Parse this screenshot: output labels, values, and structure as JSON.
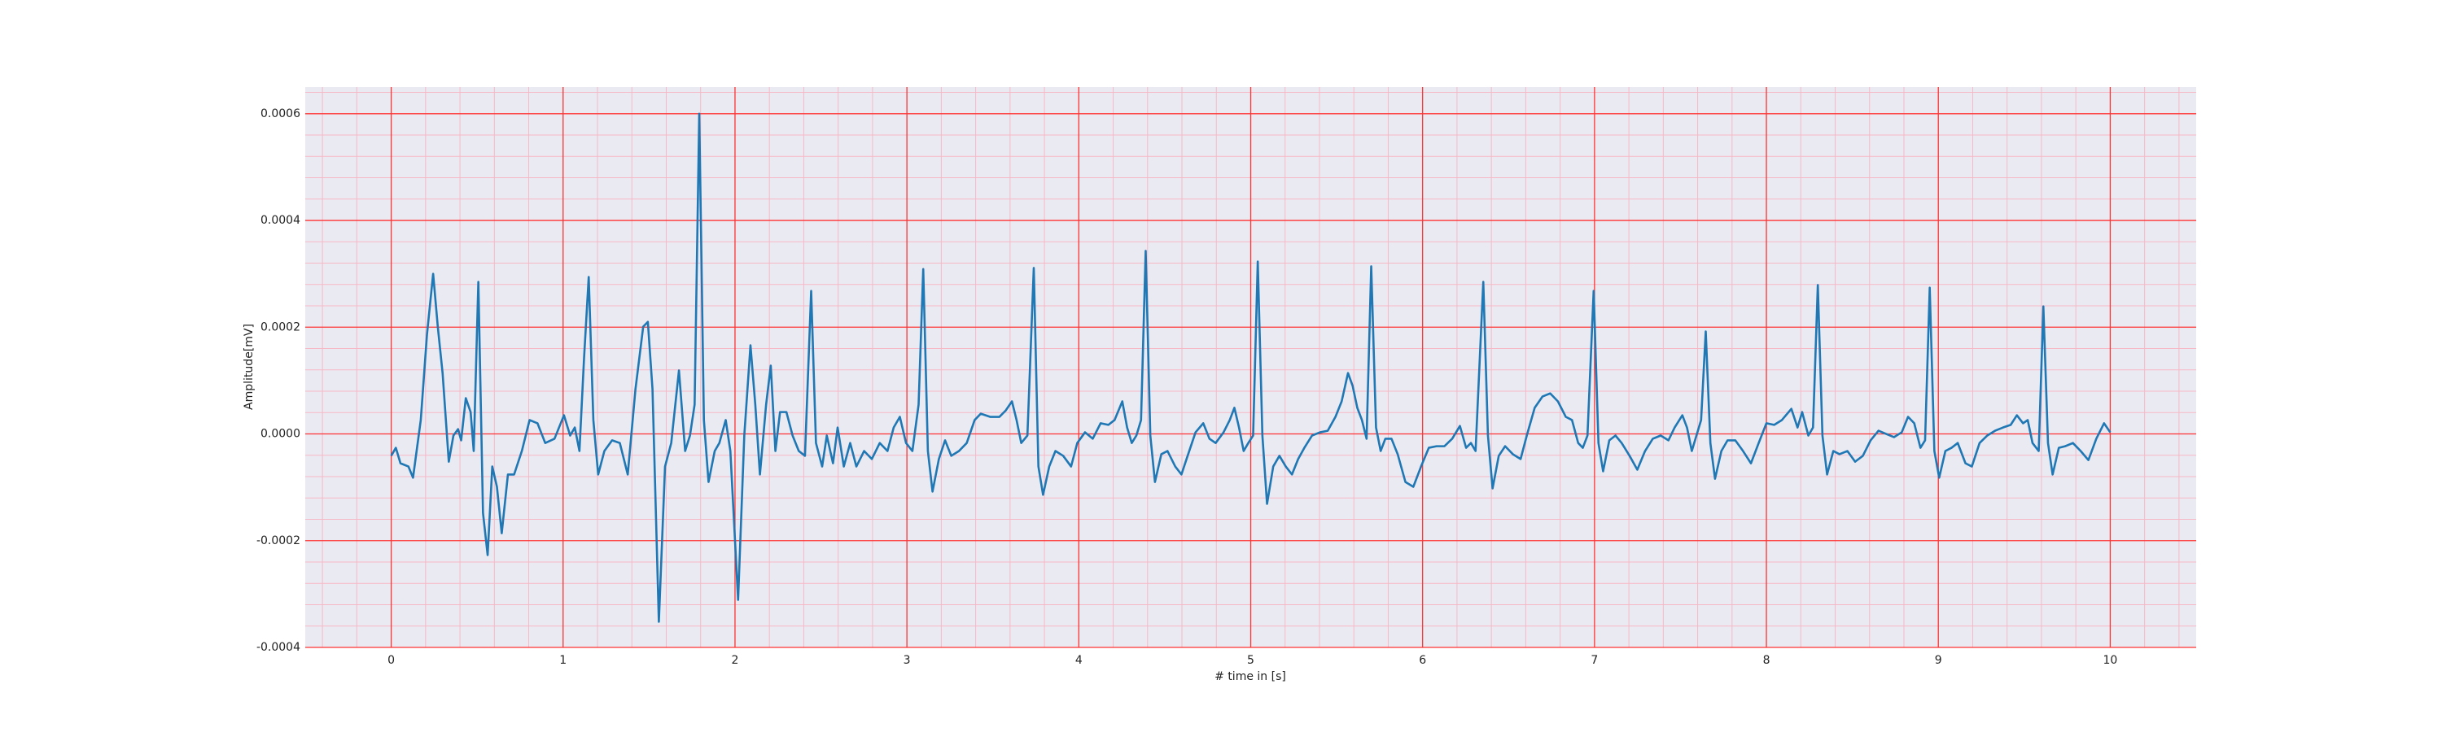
{
  "chart_data": {
    "type": "line",
    "xlabel": "# time in [s]",
    "ylabel": "Amplitude[mV]",
    "xlim": [
      -0.5,
      10.5
    ],
    "ylim": [
      -0.0004,
      0.00065
    ],
    "xticks": [
      0,
      1,
      2,
      3,
      4,
      5,
      6,
      7,
      8,
      9,
      10
    ],
    "yticks": [
      -0.0004,
      -0.0002,
      {
        "value": 0,
        "label": "0.0000"
      },
      0.0002,
      0.0004,
      0.0006
    ],
    "grid": true,
    "grid_color": "#ff3333",
    "minor_grid": true,
    "minor_grid_color": "#f7b8c6",
    "minor_divisions": 5,
    "background": "#eaeaf2",
    "series": [
      {
        "color": "#1f77b4",
        "x": [
          0,
          0.027,
          0.054,
          0.1,
          0.127,
          0.172,
          0.208,
          0.244,
          0.271,
          0.299,
          0.335,
          0.362,
          0.389,
          0.407,
          0.434,
          0.462,
          0.48,
          0.507,
          0.534,
          0.561,
          0.588,
          0.615,
          0.643,
          0.679,
          0.715,
          0.76,
          0.805,
          0.851,
          0.896,
          0.95,
          1.005,
          1.041,
          1.068,
          1.095,
          1.122,
          1.149,
          1.176,
          1.204,
          1.24,
          1.285,
          1.33,
          1.376,
          1.421,
          1.466,
          1.493,
          1.52,
          1.557,
          1.593,
          1.629,
          1.674,
          1.71,
          1.738,
          1.765,
          1.792,
          1.819,
          1.846,
          1.882,
          1.909,
          1.946,
          1.973,
          2.018,
          2.054,
          2.09,
          2.118,
          2.145,
          2.181,
          2.208,
          2.235,
          2.262,
          2.299,
          2.335,
          2.371,
          2.407,
          2.443,
          2.471,
          2.507,
          2.534,
          2.57,
          2.597,
          2.633,
          2.67,
          2.706,
          2.751,
          2.796,
          2.842,
          2.887,
          2.923,
          2.959,
          2.995,
          3.032,
          3.068,
          3.095,
          3.122,
          3.149,
          3.186,
          3.222,
          3.258,
          3.303,
          3.348,
          3.394,
          3.43,
          3.484,
          3.538,
          3.575,
          3.611,
          3.638,
          3.665,
          3.701,
          3.738,
          3.765,
          3.792,
          3.828,
          3.864,
          3.909,
          3.955,
          3.991,
          4.036,
          4.081,
          4.127,
          4.172,
          4.208,
          4.253,
          4.281,
          4.308,
          4.335,
          4.362,
          4.389,
          4.416,
          4.443,
          4.48,
          4.516,
          4.561,
          4.597,
          4.633,
          4.679,
          4.724,
          4.76,
          4.796,
          4.842,
          4.878,
          4.905,
          4.932,
          4.959,
          4.986,
          5.014,
          5.041,
          5.068,
          5.095,
          5.131,
          5.167,
          5.204,
          5.24,
          5.276,
          5.312,
          5.357,
          5.403,
          5.448,
          5.493,
          5.529,
          5.566,
          5.593,
          5.62,
          5.647,
          5.674,
          5.701,
          5.729,
          5.756,
          5.783,
          5.819,
          5.855,
          5.9,
          5.946,
          5.991,
          6.036,
          6.081,
          6.127,
          6.172,
          6.217,
          6.253,
          6.281,
          6.308,
          6.353,
          6.38,
          6.407,
          6.443,
          6.48,
          6.525,
          6.57,
          6.606,
          6.652,
          6.697,
          6.742,
          6.787,
          6.833,
          6.869,
          6.905,
          6.932,
          6.959,
          6.995,
          7.023,
          7.05,
          7.086,
          7.122,
          7.158,
          7.204,
          7.249,
          7.294,
          7.339,
          7.385,
          7.43,
          7.466,
          7.511,
          7.538,
          7.566,
          7.593,
          7.62,
          7.647,
          7.674,
          7.701,
          7.738,
          7.774,
          7.819,
          7.864,
          7.91,
          7.955,
          8.0,
          8.045,
          8.09,
          8.145,
          8.181,
          8.208,
          8.244,
          8.271,
          8.299,
          8.326,
          8.353,
          8.389,
          8.425,
          8.471,
          8.516,
          8.561,
          8.606,
          8.652,
          8.697,
          8.742,
          8.787,
          8.824,
          8.86,
          8.896,
          8.923,
          8.95,
          8.977,
          9.005,
          9.041,
          9.077,
          9.113,
          9.158,
          9.195,
          9.24,
          9.285,
          9.33,
          9.376,
          9.421,
          9.457,
          9.493,
          9.52,
          9.548,
          9.584,
          9.611,
          9.638,
          9.665,
          9.701,
          9.738,
          9.783,
          9.828,
          9.873,
          9.919,
          9.964,
          10.0
        ],
        "values": [
          -4.1e-05,
          -2.6e-05,
          -5.5e-05,
          -6.1e-05,
          -8.2e-05,
          2.6e-05,
          0.000186,
          0.0003,
          0.000201,
          0.000114,
          -5.2e-05,
          -3e-06,
          9e-06,
          -1.2e-05,
          6.7e-05,
          4.1e-05,
          -3.2e-05,
          0.000285,
          -0.000148,
          -0.000227,
          -6.1e-05,
          -9.9e-05,
          -0.000186,
          -7.6e-05,
          -7.6e-05,
          -3.2e-05,
          2.6e-05,
          2e-05,
          -1.7e-05,
          -9e-06,
          3.5e-05,
          -3e-06,
          1.2e-05,
          -3.2e-05,
          0.000143,
          0.000294,
          2.6e-05,
          -7.6e-05,
          -3.2e-05,
          -1.2e-05,
          -1.7e-05,
          -7.6e-05,
          8.4e-05,
          0.000201,
          0.00021,
          8.4e-05,
          -0.000352,
          -6.1e-05,
          -1.7e-05,
          0.000119,
          -3.2e-05,
          -3e-06,
          5.5e-05,
          0.0006,
          2.6e-05,
          -9e-05,
          -3.2e-05,
          -1.7e-05,
          2.6e-05,
          -3.2e-05,
          -0.000311,
          -3e-06,
          0.000166,
          5.5e-05,
          -7.6e-05,
          5.5e-05,
          0.000128,
          -3.2e-05,
          4.1e-05,
          4.1e-05,
          -3e-06,
          -3.2e-05,
          -4.1e-05,
          0.000268,
          -1.7e-05,
          -6.1e-05,
          -3e-06,
          -5.5e-05,
          1.2e-05,
          -6.1e-05,
          -1.7e-05,
          -6.1e-05,
          -3.2e-05,
          -4.7e-05,
          -1.7e-05,
          -3.2e-05,
          1.2e-05,
          3.2e-05,
          -1.7e-05,
          -3.2e-05,
          5.5e-05,
          0.000309,
          -3.2e-05,
          -0.000108,
          -4.7e-05,
          -1.2e-05,
          -4.1e-05,
          -3.2e-05,
          -1.7e-05,
          2.6e-05,
          3.8e-05,
          3.2e-05,
          3.2e-05,
          4.4e-05,
          6.1e-05,
          2.6e-05,
          -1.7e-05,
          -3e-06,
          0.000311,
          -6.1e-05,
          -0.000114,
          -6.1e-05,
          -3.2e-05,
          -4.1e-05,
          -6.1e-05,
          -1.7e-05,
          3e-06,
          -9e-06,
          2e-05,
          1.7e-05,
          2.6e-05,
          6.1e-05,
          1.2e-05,
          -1.7e-05,
          -3e-06,
          2.6e-05,
          0.000343,
          -3e-06,
          -9e-05,
          -3.8e-05,
          -3.2e-05,
          -6.1e-05,
          -7.6e-05,
          -4.1e-05,
          3e-06,
          2e-05,
          -9e-06,
          -1.7e-05,
          3e-06,
          2.6e-05,
          4.9e-05,
          1.2e-05,
          -3.2e-05,
          -1.7e-05,
          -3e-06,
          0.000323,
          -3e-06,
          -0.000131,
          -6.1e-05,
          -4.1e-05,
          -6.1e-05,
          -7.6e-05,
          -4.7e-05,
          -2.6e-05,
          -3e-06,
          3e-06,
          6e-06,
          3.2e-05,
          6.1e-05,
          0.000114,
          9e-05,
          4.9e-05,
          2.6e-05,
          -9e-06,
          0.000314,
          1.2e-05,
          -3.2e-05,
          -9e-06,
          -9e-06,
          -3.8e-05,
          -9e-05,
          -9.9e-05,
          -6.1e-05,
          -2.6e-05,
          -2.3e-05,
          -2.3e-05,
          -9e-06,
          1.5e-05,
          -2.6e-05,
          -1.7e-05,
          -3.2e-05,
          0.000285,
          -3e-06,
          -0.000102,
          -4.1e-05,
          -2.3e-05,
          -3.8e-05,
          -4.7e-05,
          -3e-06,
          4.9e-05,
          7e-05,
          7.6e-05,
          6.1e-05,
          3.2e-05,
          2.6e-05,
          -1.7e-05,
          -2.6e-05,
          -3e-06,
          0.000268,
          -1.7e-05,
          -7e-05,
          -1.2e-05,
          -3e-06,
          -1.7e-05,
          -4.1e-05,
          -6.7e-05,
          -3.2e-05,
          -9e-06,
          -3e-06,
          -1.2e-05,
          1.2e-05,
          3.5e-05,
          1.2e-05,
          -3.2e-05,
          -3e-06,
          2.6e-05,
          0.000192,
          -1.7e-05,
          -8.4e-05,
          -3.2e-05,
          -1.2e-05,
          -1.2e-05,
          -3.2e-05,
          -5.5e-05,
          -1.7e-05,
          2e-05,
          1.7e-05,
          2.6e-05,
          4.7e-05,
          1.2e-05,
          4.1e-05,
          -3e-06,
          1.2e-05,
          0.000279,
          -3e-06,
          -7.6e-05,
          -3.2e-05,
          -3.8e-05,
          -3.2e-05,
          -5.2e-05,
          -4.1e-05,
          -1.2e-05,
          6e-06,
          0,
          -6e-06,
          3e-06,
          3.2e-05,
          2e-05,
          -2.6e-05,
          -1.2e-05,
          0.000274,
          -3.2e-05,
          -8.2e-05,
          -3.2e-05,
          -2.6e-05,
          -1.7e-05,
          -5.5e-05,
          -6.1e-05,
          -1.7e-05,
          -3e-06,
          6e-06,
          1.2e-05,
          1.7e-05,
          3.5e-05,
          2e-05,
          2.6e-05,
          -1.7e-05,
          -3.2e-05,
          0.000239,
          -1.7e-05,
          -7.6e-05,
          -2.6e-05,
          -2.3e-05,
          -1.7e-05,
          -3.2e-05,
          -4.9e-05,
          -9e-06,
          2e-05,
          3e-06
        ]
      }
    ]
  }
}
